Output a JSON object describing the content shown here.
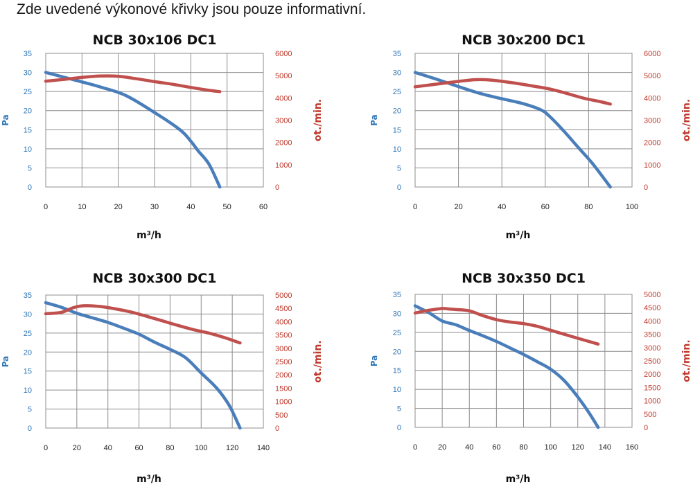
{
  "heading": "Zde uvedené výkonové křivky jsou pouze informativní.",
  "colors": {
    "pa": "#4a7ebb",
    "rpm": "#c0504d",
    "left_axis_text": "#2e75b6",
    "right_axis_text": "#c0392b"
  },
  "chart_data": [
    {
      "type": "line",
      "title": "NCB 30x106 DC1",
      "xlabel": "m³/h",
      "ylabel": "Pa",
      "y2label": "ot./min.",
      "xlim": [
        0,
        60
      ],
      "xticks": [
        0,
        10,
        20,
        30,
        40,
        50,
        60
      ],
      "ylim": [
        0,
        35
      ],
      "yticks": [
        0,
        5,
        10,
        15,
        20,
        25,
        30,
        35
      ],
      "y2lim": [
        0,
        6000
      ],
      "y2ticks": [
        0,
        1000,
        2000,
        3000,
        4000,
        5000,
        6000
      ],
      "grid": true,
      "series": [
        {
          "axis": "left",
          "x": [
            0,
            8,
            15,
            22,
            30,
            37,
            40,
            42,
            45,
            48
          ],
          "values": [
            30,
            28,
            26.2,
            24,
            19.5,
            15,
            12,
            9.5,
            6,
            0
          ]
        },
        {
          "axis": "right",
          "x": [
            0,
            5,
            10,
            15,
            20,
            25,
            30,
            35,
            40,
            45,
            48
          ],
          "values": [
            4750,
            4830,
            4920,
            4980,
            4970,
            4860,
            4730,
            4610,
            4470,
            4340,
            4280
          ]
        }
      ]
    },
    {
      "type": "line",
      "title": "NCB 30x200 DC1",
      "xlabel": "m³/h",
      "ylabel": "Pa",
      "y2label": "ot./min.",
      "xlim": [
        0,
        100
      ],
      "xticks": [
        0,
        20,
        40,
        60,
        80,
        100
      ],
      "ylim": [
        0,
        35
      ],
      "yticks": [
        0,
        5,
        10,
        15,
        20,
        25,
        30,
        35
      ],
      "y2lim": [
        0,
        6000
      ],
      "y2ticks": [
        0,
        1000,
        2000,
        3000,
        4000,
        5000,
        6000
      ],
      "grid": true,
      "series": [
        {
          "axis": "left",
          "x": [
            0,
            10,
            20,
            30,
            40,
            50,
            58,
            62,
            68,
            75,
            82,
            90
          ],
          "values": [
            30,
            28.2,
            26.3,
            24.5,
            23.1,
            21.8,
            20.2,
            18.5,
            15,
            10.5,
            6,
            0
          ]
        },
        {
          "axis": "right",
          "x": [
            0,
            10,
            20,
            28,
            35,
            45,
            55,
            62,
            70,
            78,
            85,
            90
          ],
          "values": [
            4500,
            4620,
            4740,
            4820,
            4800,
            4680,
            4520,
            4400,
            4200,
            3980,
            3840,
            3720
          ]
        }
      ]
    },
    {
      "type": "line",
      "title": "NCB 30x300 DC1",
      "xlabel": "m³/h",
      "ylabel": "Pa",
      "y2label": "ot./min.",
      "xlim": [
        0,
        140
      ],
      "xticks": [
        0,
        20,
        40,
        60,
        80,
        100,
        120,
        140
      ],
      "ylim": [
        0,
        35
      ],
      "yticks": [
        0,
        5,
        10,
        15,
        20,
        25,
        30,
        35
      ],
      "y2lim": [
        0,
        5000
      ],
      "y2ticks": [
        0,
        500,
        1000,
        1500,
        2000,
        2500,
        3000,
        3500,
        4000,
        4500,
        5000
      ],
      "grid": true,
      "series": [
        {
          "axis": "left",
          "x": [
            0,
            10,
            20,
            30,
            40,
            50,
            60,
            70,
            80,
            90,
            100,
            110,
            118,
            125
          ],
          "values": [
            33,
            31.8,
            30.2,
            29,
            27.8,
            26.3,
            24.7,
            22.6,
            20.7,
            18.5,
            14.5,
            10.5,
            6,
            0
          ]
        },
        {
          "axis": "right",
          "x": [
            0,
            10,
            18,
            25,
            35,
            45,
            55,
            65,
            75,
            85,
            95,
            105,
            115,
            125
          ],
          "values": [
            4300,
            4350,
            4530,
            4600,
            4570,
            4480,
            4360,
            4200,
            4030,
            3860,
            3700,
            3570,
            3400,
            3200
          ]
        }
      ]
    },
    {
      "type": "line",
      "title": "NCB 30x350 DC1",
      "xlabel": "m³/h",
      "ylabel": "Pa",
      "y2label": "ot./min.",
      "xlim": [
        0,
        160
      ],
      "xticks": [
        0,
        20,
        40,
        60,
        80,
        100,
        120,
        140,
        160
      ],
      "ylim": [
        0,
        35
      ],
      "yticks": [
        0,
        5,
        10,
        15,
        20,
        25,
        30,
        35
      ],
      "y2lim": [
        0,
        5000
      ],
      "y2ticks": [
        0,
        500,
        1000,
        1500,
        2000,
        2500,
        3000,
        3500,
        4000,
        4500,
        5000
      ],
      "grid": true,
      "series": [
        {
          "axis": "left",
          "x": [
            0,
            10,
            20,
            30,
            40,
            50,
            60,
            70,
            80,
            90,
            100,
            110,
            120,
            128,
            135
          ],
          "values": [
            32,
            30.2,
            28,
            27,
            25.5,
            24.1,
            22.6,
            20.9,
            19.2,
            17.3,
            15.3,
            12.3,
            8,
            4,
            0
          ]
        },
        {
          "axis": "right",
          "x": [
            0,
            10,
            20,
            25,
            30,
            40,
            50,
            60,
            70,
            80,
            90,
            100,
            110,
            120,
            135
          ],
          "values": [
            4300,
            4400,
            4470,
            4450,
            4430,
            4380,
            4200,
            4050,
            3960,
            3900,
            3800,
            3650,
            3500,
            3350,
            3130
          ]
        }
      ]
    }
  ]
}
